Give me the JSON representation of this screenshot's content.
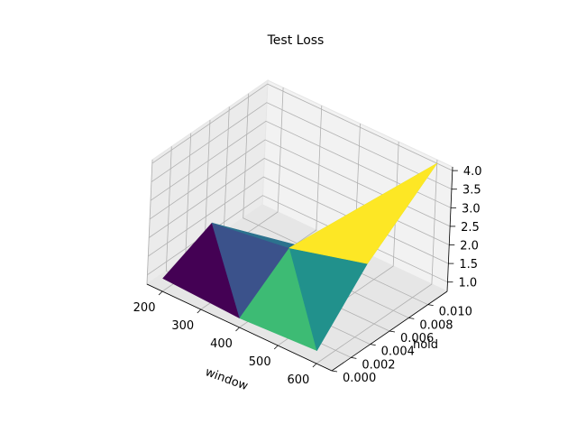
{
  "chart_data": {
    "type": "surface3d",
    "title": "Test Loss",
    "xlabel": "window",
    "ylabel": "hold",
    "zlabel": "",
    "xlim": [
      160,
      640
    ],
    "ylim": [
      0.0,
      0.012
    ],
    "zlim": [
      0.75,
      4.1
    ],
    "xticks": [
      {
        "value": 200,
        "label": "200"
      },
      {
        "value": 300,
        "label": "300"
      },
      {
        "value": 400,
        "label": "400"
      },
      {
        "value": 500,
        "label": "500"
      },
      {
        "value": 600,
        "label": "600"
      }
    ],
    "yticks": [
      {
        "value": 0.0,
        "label": "0.000"
      },
      {
        "value": 0.002,
        "label": "0.002"
      },
      {
        "value": 0.004,
        "label": "0.004"
      },
      {
        "value": 0.006,
        "label": "0.006"
      },
      {
        "value": 0.008,
        "label": "0.008"
      },
      {
        "value": 0.01,
        "label": "0.010"
      }
    ],
    "zticks": [
      {
        "value": 1.0,
        "label": "1.0"
      },
      {
        "value": 1.5,
        "label": "1.5"
      },
      {
        "value": 2.0,
        "label": "2.0"
      },
      {
        "value": 2.5,
        "label": "2.5"
      },
      {
        "value": 3.0,
        "label": "3.0"
      },
      {
        "value": 3.5,
        "label": "3.5"
      },
      {
        "value": 4.0,
        "label": "4.0"
      }
    ],
    "points": [
      {
        "window": 200,
        "hold": 0.0,
        "loss": 1.1
      },
      {
        "window": 400,
        "hold": 0.0,
        "loss": 1.0
      },
      {
        "window": 600,
        "hold": 0.0,
        "loss": 1.1
      },
      {
        "window": 200,
        "hold": 0.005,
        "loss": 1.7
      },
      {
        "window": 400,
        "hold": 0.005,
        "loss": 2.0
      },
      {
        "window": 600,
        "hold": 0.005,
        "loss": 2.55
      },
      {
        "window": 600,
        "hold": 0.012,
        "loss": 4.0
      }
    ],
    "faces": [
      {
        "points": [
          0,
          1,
          3
        ],
        "color": "#440154"
      },
      {
        "points": [
          1,
          3,
          4
        ],
        "color": "#3b528b"
      },
      {
        "points": [
          1,
          2,
          4
        ],
        "color": "#3dbb74"
      },
      {
        "points": [
          2,
          4,
          5
        ],
        "color": "#21918c"
      },
      {
        "points": [
          3,
          4,
          5
        ],
        "color": "#2c728e"
      },
      {
        "points": [
          4,
          5,
          6
        ],
        "color": "#a5db36"
      },
      {
        "points": [
          5,
          6,
          4
        ],
        "color": "#fde725"
      }
    ],
    "colormap": "viridis",
    "grid": true
  }
}
